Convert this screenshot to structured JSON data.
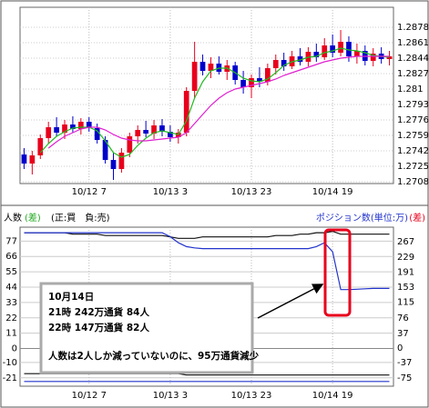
{
  "chart_data": [
    {
      "type": "candlestick",
      "categories": [
        null,
        null,
        null,
        null,
        null,
        null,
        null,
        null,
        "10/12 7",
        null,
        null,
        null,
        null,
        null,
        null,
        null,
        null,
        null,
        "10/13 3",
        null,
        null,
        null,
        null,
        null,
        null,
        null,
        null,
        null,
        "10/13 23",
        null,
        null,
        null,
        null,
        null,
        null,
        null,
        null,
        null,
        "10/14 19",
        null,
        null,
        null,
        null,
        null,
        null,
        null
      ],
      "open": [
        1.2738,
        1.2728,
        1.2737,
        1.2756,
        1.2768,
        1.2762,
        1.2771,
        1.2766,
        1.2774,
        1.2767,
        1.2754,
        1.2732,
        1.2722,
        1.274,
        1.2758,
        1.2765,
        1.2761,
        1.277,
        1.2763,
        1.2757,
        1.2762,
        1.2808,
        1.284,
        1.283,
        1.2838,
        1.2829,
        1.2836,
        1.282,
        1.2812,
        1.2822,
        1.2818,
        1.2833,
        1.2842,
        1.2835,
        1.2846,
        1.284,
        1.2851,
        1.2845,
        1.2858,
        1.285,
        1.2862,
        1.2846,
        1.2852,
        1.2841,
        1.2849,
        1.2843
      ],
      "high": [
        1.2745,
        1.2742,
        1.276,
        1.2774,
        1.2779,
        1.2776,
        1.278,
        1.2778,
        1.2779,
        1.2772,
        1.2758,
        1.274,
        1.2745,
        1.2762,
        1.277,
        1.2775,
        1.2776,
        1.2777,
        1.277,
        1.2766,
        1.2812,
        1.2862,
        1.2848,
        1.2845,
        1.2846,
        1.2842,
        1.284,
        1.283,
        1.2826,
        1.2834,
        1.2838,
        1.2848,
        1.285,
        1.2852,
        1.2855,
        1.2856,
        1.286,
        1.2866,
        1.287,
        1.2875,
        1.2868,
        1.286,
        1.2858,
        1.2855,
        1.2856,
        1.2852
      ],
      "low": [
        1.2722,
        1.2716,
        1.2733,
        1.275,
        1.2758,
        1.2755,
        1.2762,
        1.276,
        1.2763,
        1.275,
        1.2728,
        1.271,
        1.2718,
        1.2735,
        1.275,
        1.2757,
        1.2755,
        1.2758,
        1.2752,
        1.275,
        1.2758,
        1.28,
        1.2825,
        1.2822,
        1.2826,
        1.282,
        1.2815,
        1.2805,
        1.28,
        1.2812,
        1.2814,
        1.2826,
        1.283,
        1.2832,
        1.2836,
        1.2835,
        1.284,
        1.2842,
        1.2845,
        1.2846,
        1.284,
        1.2838,
        1.2836,
        1.2835,
        1.2838,
        1.2836
      ],
      "close": [
        1.2728,
        1.2737,
        1.2756,
        1.2768,
        1.2762,
        1.2771,
        1.2766,
        1.2774,
        1.2767,
        1.2754,
        1.2732,
        1.2722,
        1.274,
        1.2758,
        1.2765,
        1.2761,
        1.277,
        1.2763,
        1.2757,
        1.2762,
        1.2808,
        1.284,
        1.283,
        1.2838,
        1.2829,
        1.2836,
        1.282,
        1.2812,
        1.2822,
        1.2818,
        1.2833,
        1.2842,
        1.2835,
        1.2846,
        1.284,
        1.2851,
        1.2845,
        1.2858,
        1.285,
        1.2862,
        1.2846,
        1.2852,
        1.2841,
        1.2849,
        1.2843,
        1.2846
      ],
      "up_color": "#e8001c",
      "down_color": "#0000cc",
      "moving_averages": [
        {
          "color": "#22bb22",
          "values": [
            null,
            null,
            1.274,
            1.275,
            1.2758,
            1.2763,
            1.2767,
            1.2768,
            1.2768,
            1.2764,
            1.2753,
            1.274,
            1.2735,
            1.2738,
            1.2748,
            1.2756,
            1.2762,
            1.2764,
            1.2762,
            1.276,
            1.2775,
            1.28,
            1.2818,
            1.283,
            1.2833,
            1.2833,
            1.2828,
            1.2822,
            1.2819,
            1.2818,
            1.2821,
            1.2828,
            1.2836,
            1.284,
            1.2842,
            1.2845,
            1.2846,
            1.285,
            1.2852,
            1.2855,
            1.2853,
            1.2852,
            1.285,
            1.2847,
            1.2846,
            1.2845
          ]
        },
        {
          "color": "#e020d0",
          "values": [
            null,
            null,
            null,
            1.2745,
            1.2752,
            1.2758,
            1.2762,
            1.2766,
            1.2768,
            1.2768,
            1.2765,
            1.276,
            1.2756,
            1.2754,
            1.2753,
            1.2753,
            1.2754,
            1.2755,
            1.2756,
            1.2757,
            1.2762,
            1.2772,
            1.2782,
            1.2792,
            1.28,
            1.2806,
            1.281,
            1.2812,
            1.2814,
            1.2816,
            1.2818,
            1.2821,
            1.2825,
            1.2828,
            1.2831,
            1.2834,
            1.2837,
            1.284,
            1.2842,
            1.2844,
            1.2845,
            1.2846,
            1.2846,
            1.2846,
            1.2846,
            1.2846
          ]
        }
      ],
      "ylim": [
        1.2708,
        1.2878
      ],
      "yticks": [
        1.2878,
        1.2861,
        1.2844,
        1.2827,
        1.281,
        1.2793,
        1.2776,
        1.2759,
        1.2742,
        1.2725,
        1.2708
      ],
      "grid": true
    },
    {
      "type": "line",
      "categories": [
        null,
        null,
        null,
        null,
        null,
        null,
        null,
        null,
        "10/12 7",
        null,
        null,
        null,
        null,
        null,
        null,
        null,
        null,
        null,
        "10/13 3",
        null,
        null,
        null,
        null,
        null,
        null,
        null,
        null,
        null,
        "10/13 23",
        null,
        null,
        null,
        null,
        null,
        null,
        null,
        null,
        null,
        "10/14 19",
        null,
        null,
        null,
        null,
        null,
        null,
        null
      ],
      "left_label": "人数",
      "left_label_suffix": "(差)",
      "sign_note": "(正:買　負:売)",
      "right_label": "ポジション数(単位:万)",
      "right_label_suffix": "(差)",
      "series": [
        {
          "color": "#111111",
          "axis": "y",
          "values": [
            83,
            83,
            83,
            83,
            83,
            83,
            82,
            82,
            82,
            82,
            81,
            81,
            81,
            81,
            81,
            81,
            81,
            81,
            80,
            79,
            79,
            79,
            80,
            80,
            80,
            80,
            80,
            80,
            80,
            80,
            80,
            81,
            81,
            81,
            82,
            82,
            83,
            83,
            84,
            82,
            82,
            82,
            82,
            82,
            82,
            82
          ]
        },
        {
          "color": "#2233cc",
          "axis": "y2",
          "values": [
            290,
            290,
            290,
            290,
            290,
            290,
            290,
            290,
            290,
            290,
            290,
            290,
            290,
            290,
            290,
            290,
            290,
            290,
            280,
            265,
            255,
            252,
            250,
            250,
            250,
            250,
            250,
            250,
            250,
            250,
            250,
            250,
            250,
            250,
            250,
            250,
            255,
            265,
            242,
            147,
            147,
            148,
            149,
            150,
            150,
            150
          ]
        },
        {
          "color": "#111111",
          "axis": "y",
          "values": [
            -18,
            -18,
            -18,
            -18,
            -18,
            -18,
            -18,
            -18,
            -18,
            -18,
            -18,
            -18,
            -18,
            -18,
            -18,
            -18,
            -18,
            -18,
            -18,
            -18,
            -19,
            -19,
            -19,
            -19,
            -19,
            -19,
            -19,
            -19,
            -19,
            -19,
            -19,
            -19,
            -19,
            -19,
            -19,
            -19,
            -19,
            -19,
            -19,
            -19,
            -19,
            -19,
            -19,
            -19,
            -19,
            -19
          ]
        },
        {
          "color": "#2233cc",
          "axis": "y2",
          "values": [
            -84,
            -84,
            -84,
            -84,
            -84,
            -84,
            -84,
            -84,
            -84,
            -84,
            -84,
            -84,
            -84,
            -84,
            -84,
            -84,
            -84,
            -84,
            -84,
            -84,
            -84,
            -84,
            -84,
            -84,
            -84,
            -84,
            -84,
            -84,
            -84,
            -84,
            -84,
            -84,
            -84,
            -84,
            -84,
            -84,
            -84,
            -84,
            -84,
            -84,
            -84,
            -84,
            -84,
            -84,
            -84,
            -84
          ]
        }
      ],
      "ylim": [
        -27,
        87
      ],
      "yticks": [
        77,
        66,
        55,
        44,
        33,
        22,
        11,
        0,
        -10,
        -21
      ],
      "y2lim": [
        -96,
        304
      ],
      "y2ticks": [
        267,
        229,
        191,
        153,
        115,
        76,
        37,
        0,
        -37,
        -75
      ],
      "grid": true,
      "annotation": {
        "lines": [
          "10月14日",
          "21時 242万通貨 84人",
          "22時 147万通貨 82人",
          "人数は2人しか減っていないのに、95万通貨減少"
        ]
      }
    }
  ]
}
